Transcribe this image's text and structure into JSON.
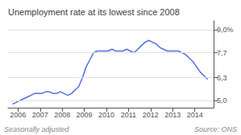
{
  "chart_data": {
    "type": "line",
    "title": "Unemployment rate at its lowest since 2008",
    "annotations": [
      "Seasonally adjusted",
      "Source: ONS"
    ],
    "x": [
      2005.75,
      2005.92,
      2006.08,
      2006.25,
      2006.42,
      2006.58,
      2006.75,
      2006.92,
      2007.08,
      2007.25,
      2007.42,
      2007.58,
      2007.75,
      2007.92,
      2008.08,
      2008.25,
      2008.42,
      2008.58,
      2008.75,
      2008.92,
      2009.08,
      2009.25,
      2009.42,
      2009.58,
      2009.75,
      2009.92,
      2010.08,
      2010.25,
      2010.42,
      2010.58,
      2010.75,
      2010.92,
      2011.08,
      2011.25,
      2011.42,
      2011.58,
      2011.75,
      2011.92,
      2012.08,
      2012.25,
      2012.42,
      2012.58,
      2012.75,
      2012.92,
      2013.08,
      2013.25,
      2013.42,
      2013.58,
      2013.75,
      2013.92,
      2014.08,
      2014.25,
      2014.42,
      2014.58
    ],
    "values": [
      4.8,
      4.9,
      5.0,
      5.1,
      5.2,
      5.3,
      5.4,
      5.4,
      5.4,
      5.5,
      5.5,
      5.4,
      5.4,
      5.5,
      5.4,
      5.3,
      5.4,
      5.6,
      5.8,
      6.3,
      6.9,
      7.3,
      7.7,
      7.8,
      7.8,
      7.8,
      7.8,
      7.9,
      7.8,
      7.8,
      7.8,
      7.9,
      7.8,
      7.7,
      7.9,
      8.1,
      8.3,
      8.4,
      8.3,
      8.2,
      8.0,
      7.9,
      7.8,
      7.8,
      7.8,
      7.8,
      7.7,
      7.6,
      7.4,
      7.2,
      6.9,
      6.6,
      6.4,
      6.2
    ],
    "xlim": [
      2005.55,
      2014.85
    ],
    "xticks": [
      2006,
      2007,
      2008,
      2009,
      2010,
      2011,
      2012,
      2013,
      2014
    ],
    "ylim": [
      4.6,
      9.5
    ],
    "yticks": [
      {
        "value": 5.0,
        "label": "5,0"
      },
      {
        "value": 6.3,
        "label": "6,3"
      },
      {
        "value": 7.7,
        "label": "7,7"
      },
      {
        "value": 9.0,
        "label": "9,0%"
      }
    ],
    "grid": true
  }
}
